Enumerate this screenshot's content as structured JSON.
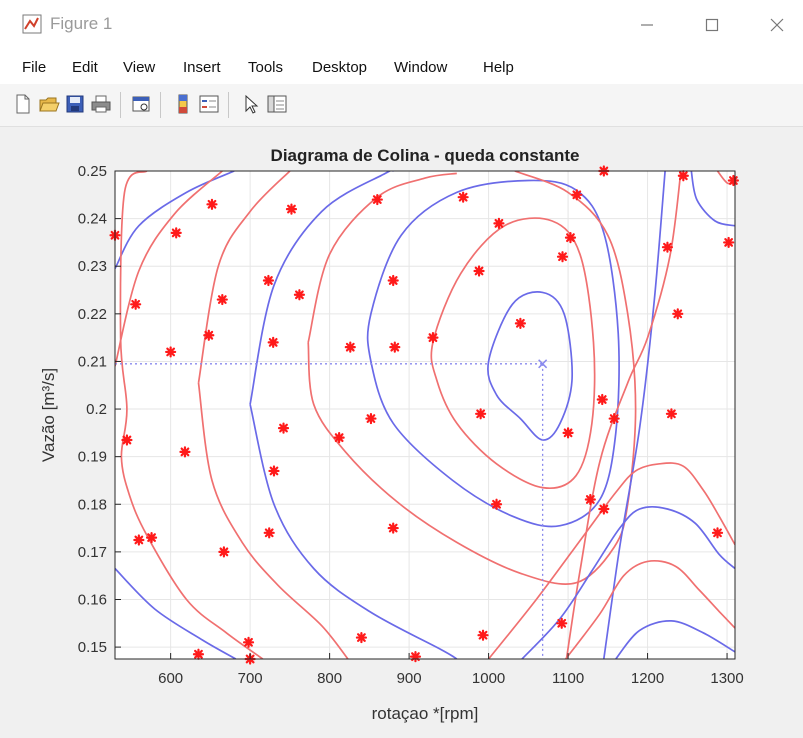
{
  "window": {
    "title": "Figure 1",
    "controls": [
      "minimize",
      "maximize",
      "close"
    ]
  },
  "menu": [
    "File",
    "Edit",
    "View",
    "Insert",
    "Tools",
    "Desktop",
    "Window",
    "Help"
  ],
  "toolbar": {
    "icons": [
      "new-figure-icon",
      "open-file-icon",
      "save-icon",
      "print-icon",
      "print-preview-icon",
      "colorbar-icon",
      "legend-icon",
      "edit-plot-icon",
      "property-inspector-icon"
    ]
  },
  "chart_data": {
    "type": "scatter",
    "title": "Diagrama de Colina - queda constante",
    "xlabel": "rotaçao *[rpm]",
    "ylabel": "Vazão [m³/s]",
    "xlim": [
      530,
      1310
    ],
    "ylim": [
      0.1475,
      0.25
    ],
    "xticks": [
      600,
      700,
      800,
      900,
      1000,
      1100,
      1200,
      1300
    ],
    "xtick_labels": [
      "600",
      "700",
      "800",
      "900",
      "1000",
      "1100",
      "1200",
      "1300"
    ],
    "yticks": [
      0.15,
      0.16,
      0.17,
      0.18,
      0.19,
      0.2,
      0.21,
      0.22,
      0.23,
      0.24,
      0.25
    ],
    "ytick_labels": [
      "0.15",
      "0.16",
      "0.17",
      "0.18",
      "0.19",
      "0.2",
      "0.21",
      "0.22",
      "0.23",
      "0.24",
      "0.25"
    ],
    "grid": true,
    "colors": {
      "contour_red": "#f07070",
      "contour_blue": "#6a6ae8",
      "marker": "#ff1a1a",
      "crosshair": "#8a8aee"
    },
    "optimum_marker": {
      "x": 1068,
      "y": 0.2095
    },
    "points": [
      {
        "x": 530,
        "y": 0.2365
      },
      {
        "x": 556,
        "y": 0.222
      },
      {
        "x": 545,
        "y": 0.1935
      },
      {
        "x": 560,
        "y": 0.1725
      },
      {
        "x": 576,
        "y": 0.173
      },
      {
        "x": 600,
        "y": 0.212
      },
      {
        "x": 607,
        "y": 0.237
      },
      {
        "x": 618,
        "y": 0.191
      },
      {
        "x": 635,
        "y": 0.1485
      },
      {
        "x": 648,
        "y": 0.2155
      },
      {
        "x": 652,
        "y": 0.243
      },
      {
        "x": 665,
        "y": 0.223
      },
      {
        "x": 667,
        "y": 0.17
      },
      {
        "x": 698,
        "y": 0.151
      },
      {
        "x": 700,
        "y": 0.1475
      },
      {
        "x": 723,
        "y": 0.227
      },
      {
        "x": 724,
        "y": 0.174
      },
      {
        "x": 729,
        "y": 0.214
      },
      {
        "x": 730,
        "y": 0.187
      },
      {
        "x": 742,
        "y": 0.196
      },
      {
        "x": 752,
        "y": 0.242
      },
      {
        "x": 762,
        "y": 0.224
      },
      {
        "x": 812,
        "y": 0.194
      },
      {
        "x": 826,
        "y": 0.213
      },
      {
        "x": 840,
        "y": 0.152
      },
      {
        "x": 852,
        "y": 0.198
      },
      {
        "x": 860,
        "y": 0.244
      },
      {
        "x": 880,
        "y": 0.227
      },
      {
        "x": 880,
        "y": 0.175
      },
      {
        "x": 882,
        "y": 0.213
      },
      {
        "x": 908,
        "y": 0.148
      },
      {
        "x": 930,
        "y": 0.215
      },
      {
        "x": 968,
        "y": 0.2445
      },
      {
        "x": 988,
        "y": 0.229
      },
      {
        "x": 990,
        "y": 0.199
      },
      {
        "x": 993,
        "y": 0.1525
      },
      {
        "x": 1010,
        "y": 0.18
      },
      {
        "x": 1013,
        "y": 0.239
      },
      {
        "x": 1040,
        "y": 0.218
      },
      {
        "x": 1092,
        "y": 0.155
      },
      {
        "x": 1093,
        "y": 0.232
      },
      {
        "x": 1100,
        "y": 0.195
      },
      {
        "x": 1103,
        "y": 0.236
      },
      {
        "x": 1111,
        "y": 0.245
      },
      {
        "x": 1128,
        "y": 0.181
      },
      {
        "x": 1143,
        "y": 0.202
      },
      {
        "x": 1145,
        "y": 0.179
      },
      {
        "x": 1145,
        "y": 0.25
      },
      {
        "x": 1158,
        "y": 0.198
      },
      {
        "x": 1225,
        "y": 0.234
      },
      {
        "x": 1230,
        "y": 0.199
      },
      {
        "x": 1238,
        "y": 0.22
      },
      {
        "x": 1245,
        "y": 0.249
      },
      {
        "x": 1288,
        "y": 0.174
      },
      {
        "x": 1302,
        "y": 0.235
      },
      {
        "x": 1308,
        "y": 0.248
      }
    ],
    "contours": [
      {
        "color": "blue",
        "points": [
          [
            1000,
            0.21
          ],
          [
            1030,
            0.222
          ],
          [
            1068,
            0.2245
          ],
          [
            1095,
            0.22
          ],
          [
            1105,
            0.2065
          ],
          [
            1090,
            0.197
          ],
          [
            1068,
            0.1935
          ],
          [
            1040,
            0.198
          ],
          [
            1010,
            0.203
          ],
          [
            1000,
            0.21
          ]
        ],
        "closed": true
      },
      {
        "color": "red",
        "points": [
          [
            930,
            0.214
          ],
          [
            965,
            0.2285
          ],
          [
            1020,
            0.2385
          ],
          [
            1080,
            0.2395
          ],
          [
            1115,
            0.2325
          ],
          [
            1132,
            0.214
          ],
          [
            1130,
            0.197
          ],
          [
            1110,
            0.186
          ],
          [
            1068,
            0.1835
          ],
          [
            1010,
            0.1885
          ],
          [
            960,
            0.197
          ],
          [
            935,
            0.206
          ],
          [
            930,
            0.214
          ]
        ],
        "closed": true
      },
      {
        "color": "blue",
        "points": [
          [
            852,
            0.22
          ],
          [
            890,
            0.2365
          ],
          [
            960,
            0.2455
          ],
          [
            1050,
            0.248
          ],
          [
            1110,
            0.246
          ],
          [
            1145,
            0.237
          ],
          [
            1163,
            0.216
          ],
          [
            1160,
            0.195
          ],
          [
            1140,
            0.181
          ],
          [
            1090,
            0.1755
          ],
          [
            1030,
            0.1775
          ],
          [
            955,
            0.185
          ],
          [
            880,
            0.197
          ],
          [
            852,
            0.21
          ],
          [
            852,
            0.22
          ]
        ],
        "closed": true
      },
      {
        "color": "red",
        "points": [
          [
            773,
            0.214
          ],
          [
            800,
            0.2325
          ],
          [
            860,
            0.2445
          ],
          [
            920,
            0.2485
          ],
          [
            960,
            0.2495
          ]
        ]
      },
      {
        "color": "red",
        "points": [
          [
            1033,
            0.25
          ],
          [
            1100,
            0.2455
          ],
          [
            1150,
            0.2365
          ],
          [
            1175,
            0.22
          ],
          [
            1185,
            0.2
          ],
          [
            1175,
            0.18
          ],
          [
            1158,
            0.171
          ],
          [
            1110,
            0.1635
          ],
          [
            1040,
            0.1655
          ],
          [
            960,
            0.172
          ],
          [
            885,
            0.1805
          ],
          [
            820,
            0.191
          ],
          [
            780,
            0.201
          ],
          [
            773,
            0.214
          ]
        ]
      },
      {
        "color": "blue",
        "points": [
          [
            700,
            0.201
          ],
          [
            730,
            0.226
          ],
          [
            790,
            0.2415
          ],
          [
            870,
            0.2495
          ],
          [
            880,
            0.25
          ]
        ]
      },
      {
        "color": "blue",
        "points": [
          [
            700,
            0.201
          ],
          [
            730,
            0.18
          ],
          [
            780,
            0.1665
          ],
          [
            850,
            0.1575
          ],
          [
            940,
            0.1495
          ],
          [
            960,
            0.1475
          ]
        ]
      },
      {
        "color": "blue",
        "points": [
          [
            1145,
            0.1475
          ],
          [
            1165,
            0.171
          ],
          [
            1190,
            0.196
          ],
          [
            1208,
            0.222
          ],
          [
            1222,
            0.25
          ]
        ]
      },
      {
        "color": "red",
        "points": [
          [
            635,
            0.2055
          ],
          [
            660,
            0.23
          ],
          [
            700,
            0.2415
          ],
          [
            750,
            0.25
          ]
        ]
      },
      {
        "color": "red",
        "points": [
          [
            635,
            0.2055
          ],
          [
            652,
            0.185
          ],
          [
            690,
            0.172
          ],
          [
            735,
            0.163
          ],
          [
            790,
            0.1545
          ],
          [
            823,
            0.1475
          ]
        ]
      },
      {
        "color": "red",
        "points": [
          [
            1098,
            0.1475
          ],
          [
            1115,
            0.166
          ],
          [
            1140,
            0.189
          ],
          [
            1175,
            0.2055
          ],
          [
            1200,
            0.215
          ],
          [
            1228,
            0.232
          ],
          [
            1242,
            0.25
          ]
        ]
      },
      {
        "color": "blue",
        "points": [
          [
            530,
            0.2295
          ],
          [
            560,
            0.2385
          ],
          [
            620,
            0.2455
          ],
          [
            680,
            0.25
          ]
        ]
      },
      {
        "color": "red",
        "points": [
          [
            530,
            0.209
          ],
          [
            560,
            0.229
          ],
          [
            605,
            0.241
          ],
          [
            665,
            0.25
          ]
        ]
      },
      {
        "color": "red",
        "points": [
          [
            570,
            0.25
          ],
          [
            542,
            0.2455
          ],
          [
            537,
            0.215
          ],
          [
            545,
            0.2
          ],
          [
            538,
            0.19
          ],
          [
            548,
            0.182
          ],
          [
            570,
            0.1735
          ],
          [
            620,
            0.16
          ],
          [
            670,
            0.153
          ],
          [
            716,
            0.1475
          ]
        ]
      },
      {
        "color": "blue",
        "points": [
          [
            530,
            0.1665
          ],
          [
            580,
            0.158
          ],
          [
            640,
            0.1515
          ],
          [
            682,
            0.1475
          ]
        ]
      },
      {
        "color": "blue",
        "points": [
          [
            1255,
            0.25
          ],
          [
            1262,
            0.244
          ],
          [
            1285,
            0.2395
          ],
          [
            1310,
            0.2385
          ]
        ]
      },
      {
        "color": "red",
        "points": [
          [
            1288,
            0.25
          ],
          [
            1300,
            0.2475
          ],
          [
            1310,
            0.2475
          ]
        ]
      },
      {
        "color": "red",
        "points": [
          [
            1000,
            0.1475
          ],
          [
            1060,
            0.16
          ],
          [
            1120,
            0.1735
          ],
          [
            1160,
            0.1825
          ],
          [
            1185,
            0.187
          ],
          [
            1215,
            0.1885
          ],
          [
            1245,
            0.188
          ],
          [
            1270,
            0.183
          ],
          [
            1290,
            0.1775
          ],
          [
            1310,
            0.1715
          ]
        ]
      },
      {
        "color": "blue",
        "points": [
          [
            1042,
            0.1475
          ],
          [
            1090,
            0.156
          ],
          [
            1130,
            0.166
          ],
          [
            1165,
            0.175
          ],
          [
            1190,
            0.179
          ],
          [
            1225,
            0.179
          ],
          [
            1260,
            0.176
          ],
          [
            1290,
            0.1695
          ],
          [
            1310,
            0.1665
          ]
        ]
      },
      {
        "color": "red",
        "points": [
          [
            1097,
            0.1475
          ],
          [
            1140,
            0.157
          ],
          [
            1170,
            0.165
          ],
          [
            1200,
            0.168
          ],
          [
            1235,
            0.167
          ],
          [
            1265,
            0.162
          ],
          [
            1290,
            0.1575
          ],
          [
            1310,
            0.154
          ]
        ]
      },
      {
        "color": "blue",
        "points": [
          [
            1160,
            0.1475
          ],
          [
            1190,
            0.1535
          ],
          [
            1230,
            0.1555
          ],
          [
            1270,
            0.153
          ],
          [
            1310,
            0.149
          ]
        ]
      }
    ]
  }
}
